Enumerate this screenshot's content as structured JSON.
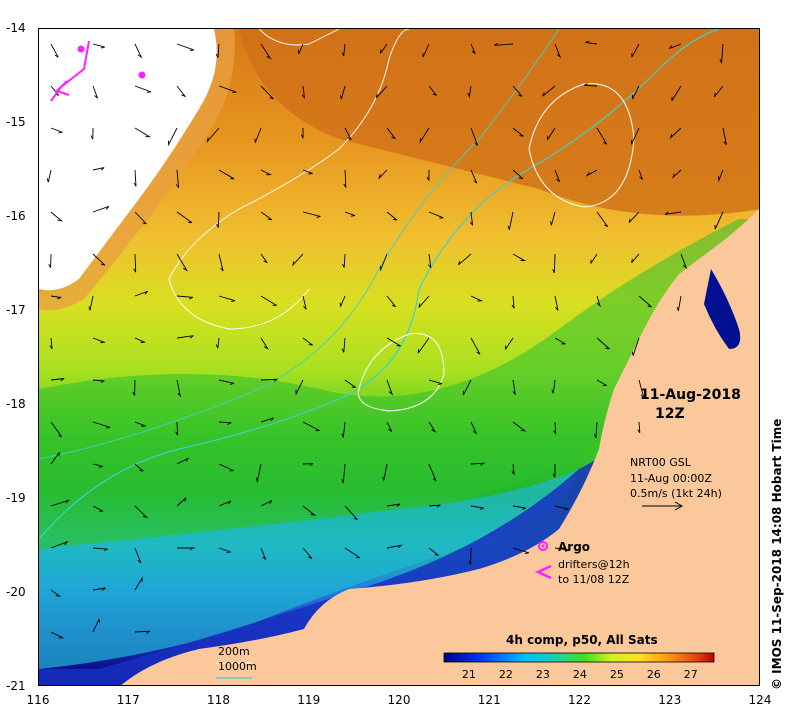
{
  "map": {
    "lon_ticks": [
      "116",
      "117",
      "118",
      "119",
      "120",
      "121",
      "122",
      "123",
      "124"
    ],
    "lat_ticks": [
      "-14",
      "-15",
      "-16",
      "-17",
      "-18",
      "-19",
      "-20",
      "-21"
    ],
    "lon_range": [
      116,
      124
    ],
    "lat_range": [
      -14,
      -21
    ],
    "date_line1": "11-Aug-2018",
    "date_line2": "12Z",
    "vector_info": {
      "line1": "NRT00 GSL",
      "line2": "11-Aug 00:00Z",
      "line3": "0.5m/s (1kt 24h)"
    },
    "legend": {
      "argo_label": "Argo",
      "drifters_line1": "drifters@12h",
      "drifters_line2": "to 11/08 12Z"
    },
    "isobaths": {
      "label_200": "200m",
      "label_1000": "1000m",
      "color_200": "#ffffff",
      "color_1000": "#40d0c8"
    },
    "colorbar": {
      "title": "4h comp, p50, All Sats",
      "ticks": [
        "21",
        "22",
        "23",
        "24",
        "25",
        "26",
        "27"
      ],
      "range": [
        20.3,
        27.6
      ]
    },
    "credit": "© IMOS 11-Sep-2018 14:08 Hobart Time",
    "colors": {
      "land": "#fac89a",
      "cold": "#000080",
      "warm": "#d06010",
      "argo": "#ff20ff"
    }
  }
}
